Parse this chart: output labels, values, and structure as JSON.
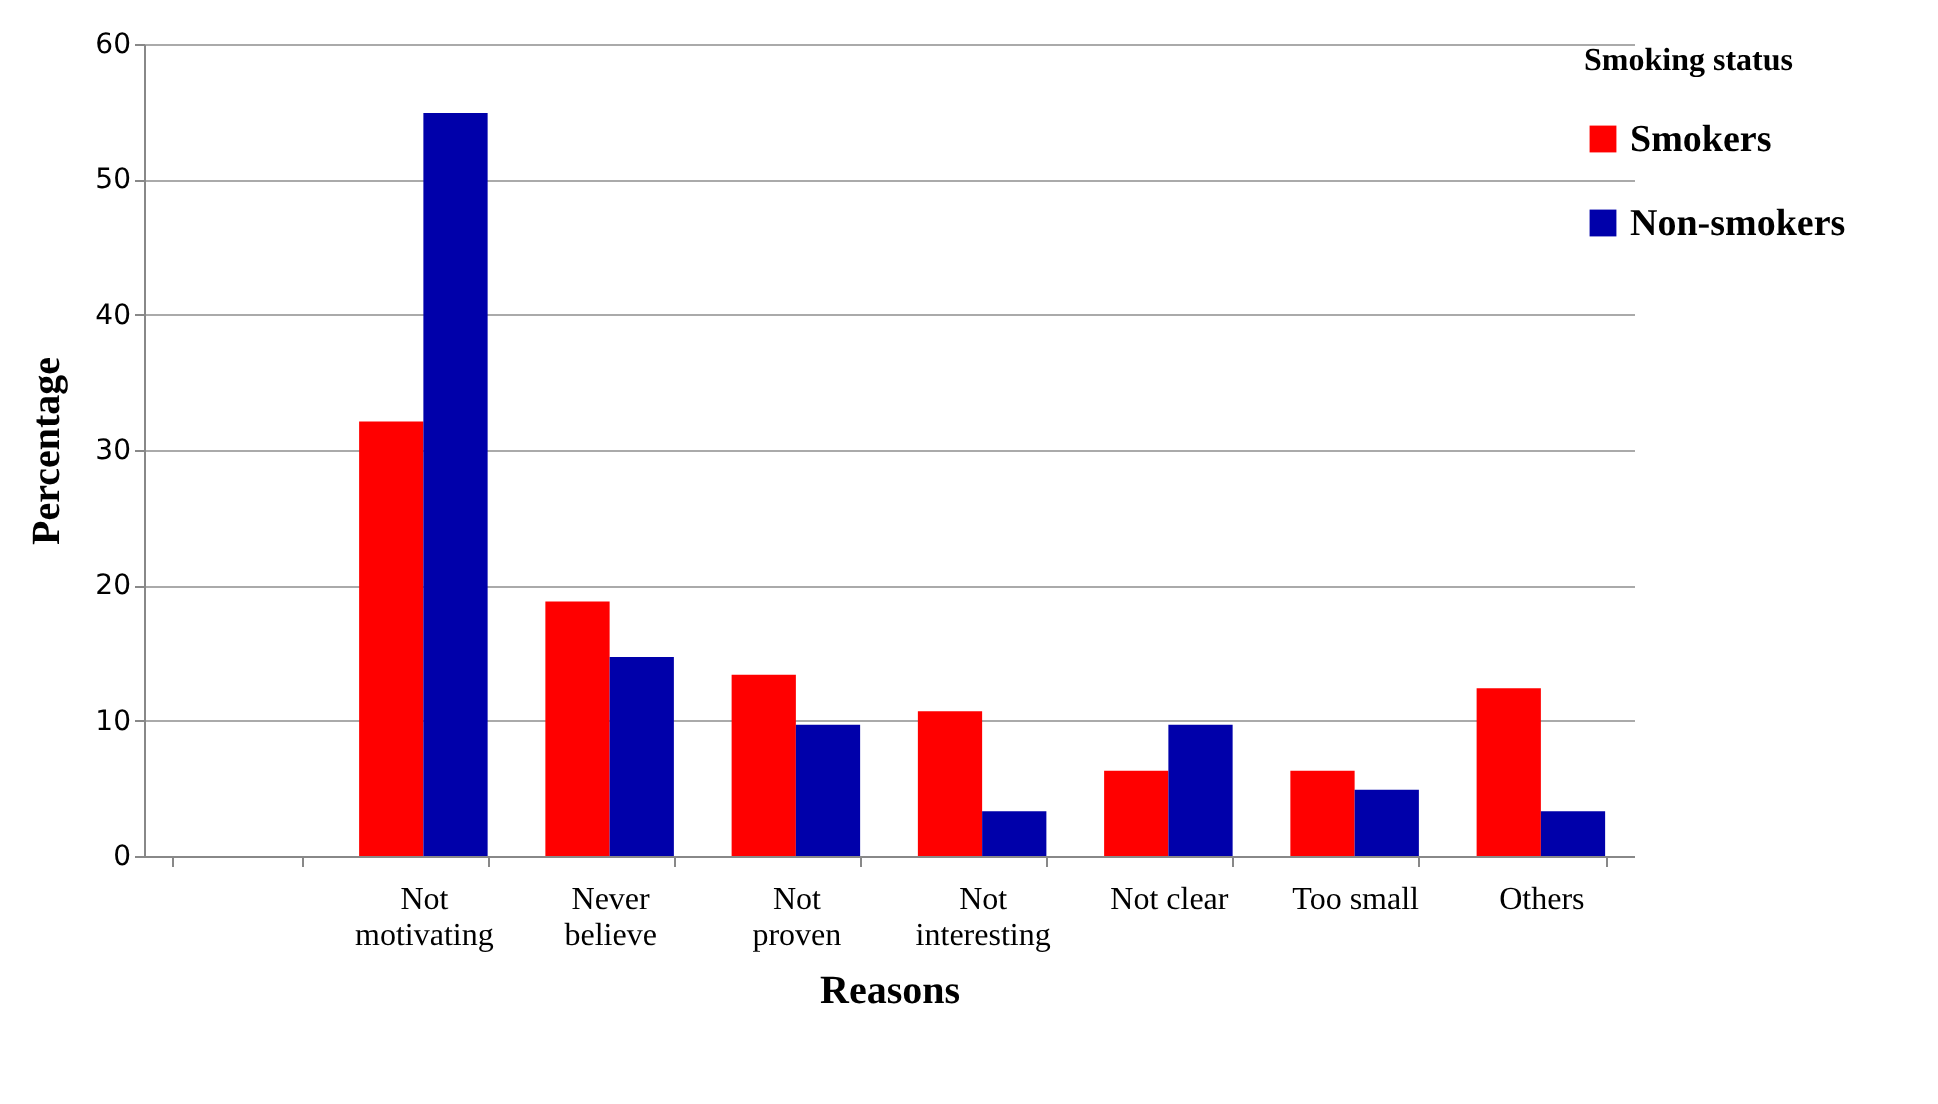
{
  "chart_data": {
    "type": "bar",
    "xlabel": "Reasons",
    "ylabel": "Percentage",
    "legend_title": "Smoking status",
    "categories": [
      null,
      "Not motivating",
      "Never believe",
      "Not proven",
      "Not interesting",
      "Not clear",
      "Too small",
      "Others"
    ],
    "series": [
      {
        "name": "Smokers",
        "color": "#ff0000",
        "values": [
          null,
          32.1,
          18.8,
          13.4,
          10.7,
          6.3,
          6.3,
          12.4
        ]
      },
      {
        "name": "Non-smokers",
        "color": "#0000aa",
        "values": [
          null,
          54.9,
          14.7,
          9.7,
          3.3,
          9.7,
          4.9,
          3.3
        ]
      }
    ],
    "ylim": [
      0,
      60
    ],
    "yticks": [
      0,
      10,
      20,
      30,
      40,
      50,
      60
    ],
    "grid": "y",
    "legend": "right"
  }
}
